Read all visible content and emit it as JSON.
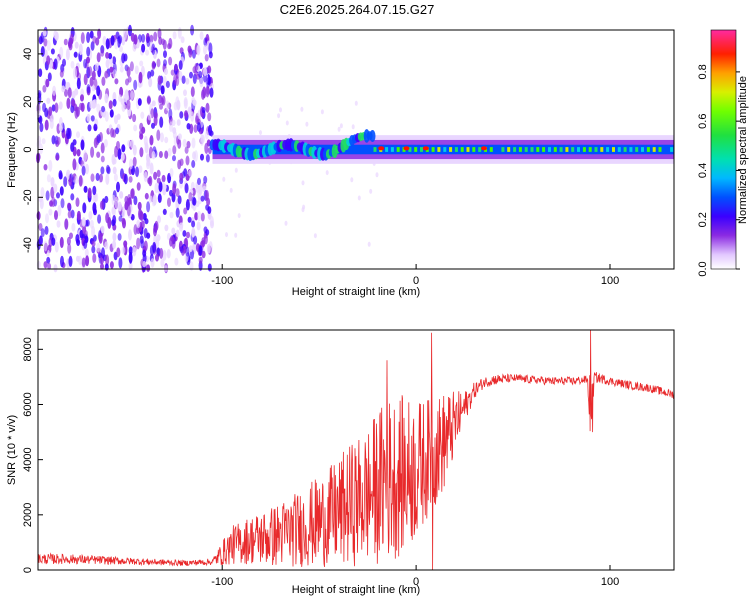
{
  "title": "C2E6.2025.264.07.15.G27",
  "colors": {
    "snr_line": "#e8292b",
    "axis": "#000000",
    "cmap": [
      "#ffffff",
      "#e9d6ff",
      "#8b2be2",
      "#3b00ff",
      "#0050ff",
      "#00d0e0",
      "#20e060",
      "#40ff00",
      "#d0f000",
      "#ff9000",
      "#ff1000",
      "#ff2aa0"
    ]
  },
  "chart_data": [
    {
      "type": "heatmap",
      "title": "C2E6.2025.264.07.15.G27",
      "xlabel": "Height of straight line (km)",
      "ylabel": "Frequency (Hz)",
      "xlim": [
        -195,
        133
      ],
      "ylim": [
        -50,
        50
      ],
      "xticks": [
        {
          "v": -100,
          "label": "-100"
        },
        {
          "v": 0,
          "label": "0"
        },
        {
          "v": 100,
          "label": "100"
        }
      ],
      "yticks": [
        {
          "v": 40,
          "label": "40"
        },
        {
          "v": 20,
          "label": "20"
        },
        {
          "v": 0,
          "label": "0"
        },
        {
          "v": -20,
          "label": "-20"
        },
        {
          "v": -40,
          "label": "-40"
        }
      ],
      "colorbar": {
        "label": "Normalized spectral amplitude",
        "range": [
          0,
          0.97
        ],
        "ticks": [
          {
            "v": 0.0,
            "label": "0.0"
          },
          {
            "v": 0.2,
            "label": "0.2"
          },
          {
            "v": 0.4,
            "label": "0.4"
          },
          {
            "v": 0.6,
            "label": "0.6"
          },
          {
            "v": 0.8,
            "label": "0.8"
          }
        ]
      },
      "regions": [
        {
          "name": "noise",
          "x_range": [
            -195,
            -105
          ],
          "amplitude": 0.15
        },
        {
          "name": "signal-band",
          "x_range": [
            -105,
            133
          ],
          "center_freq_hz": 0,
          "halfwidth_hz": 4,
          "peak_amplitude": 0.85
        }
      ]
    },
    {
      "type": "line",
      "xlabel": "Height of straight line (km)",
      "ylabel": "SNR (10 * v/v)",
      "xlim": [
        -195,
        133
      ],
      "ylim": [
        0,
        8700
      ],
      "xticks": [
        {
          "v": -100,
          "label": "-100"
        },
        {
          "v": 0,
          "label": "0"
        },
        {
          "v": 100,
          "label": "100"
        }
      ],
      "yticks": [
        {
          "v": 0,
          "label": "0"
        },
        {
          "v": 2000,
          "label": "2000"
        },
        {
          "v": 4000,
          "label": "4000"
        },
        {
          "v": 6000,
          "label": "6000"
        },
        {
          "v": 8000,
          "label": "8000"
        }
      ],
      "series": [
        {
          "name": "SNR",
          "x": [
            -195,
            -180,
            -160,
            -140,
            -120,
            -105,
            -100,
            -95,
            -85,
            -75,
            -60,
            -45,
            -35,
            -25,
            -20,
            -15,
            -10,
            -5,
            0,
            5,
            10,
            15,
            20,
            25,
            30,
            35,
            40,
            50,
            60,
            70,
            80,
            88,
            90,
            92,
            100,
            110,
            120,
            133
          ],
          "y": [
            400,
            400,
            350,
            300,
            250,
            300,
            600,
            900,
            1100,
            1200,
            1500,
            1900,
            2300,
            2700,
            3000,
            3300,
            3400,
            3500,
            3600,
            4000,
            4300,
            4700,
            5300,
            5900,
            6500,
            6800,
            6900,
            6950,
            6900,
            6850,
            6850,
            6900,
            6000,
            7000,
            6850,
            6700,
            6600,
            6350
          ],
          "noise_amplitude": [
            200,
            180,
            150,
            120,
            100,
            120,
            450,
            700,
            900,
            1100,
            1400,
            1800,
            2200,
            2500,
            2800,
            3000,
            3000,
            2800,
            2600,
            2200,
            2000,
            1800,
            1200,
            600,
            300,
            200,
            200,
            150,
            150,
            150,
            150,
            150,
            1400,
            200,
            150,
            150,
            150,
            150
          ]
        }
      ],
      "spikes": [
        {
          "x": -15,
          "y": 7600
        },
        {
          "x": 8,
          "y": 8600
        },
        {
          "x": 8.5,
          "y": 0
        },
        {
          "x": 90,
          "y": 8700
        },
        {
          "x": 91,
          "y": 5000
        }
      ]
    }
  ]
}
